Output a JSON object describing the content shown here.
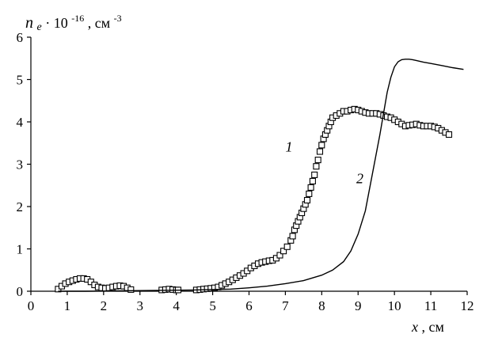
{
  "chart_data": {
    "type": "scatter",
    "ylabel": {
      "var": "n",
      "sub": "e",
      "mid": " · 10",
      "exp": "-16",
      "unit": ", см",
      "unit_exp": "-3"
    },
    "xlabel": {
      "var": "x",
      "unit": ", см"
    },
    "xlim": [
      0,
      12
    ],
    "ylim": [
      0,
      6
    ],
    "x_ticks": [
      "0",
      "1",
      "2",
      "3",
      "4",
      "5",
      "6",
      "7",
      "8",
      "9",
      "10",
      "11",
      "12"
    ],
    "y_ticks": [
      "0",
      "1",
      "2",
      "3",
      "4",
      "5",
      "6"
    ],
    "grid": false,
    "series": [
      {
        "name": "1",
        "style": "markers",
        "marker": "square",
        "x": [
          0.75,
          0.85,
          0.95,
          1.05,
          1.15,
          1.25,
          1.35,
          1.45,
          1.55,
          1.65,
          1.75,
          1.85,
          1.95,
          2.05,
          2.15,
          2.25,
          2.35,
          2.45,
          2.55,
          2.65,
          2.75,
          3.6,
          3.7,
          3.8,
          3.9,
          4.0,
          4.05,
          4.55,
          4.65,
          4.75,
          4.85,
          4.95,
          5.05,
          5.15,
          5.25,
          5.35,
          5.45,
          5.55,
          5.65,
          5.75,
          5.85,
          5.95,
          6.05,
          6.15,
          6.25,
          6.35,
          6.45,
          6.55,
          6.65,
          6.75,
          6.85,
          6.95,
          7.05,
          7.15,
          7.2,
          7.25,
          7.3,
          7.35,
          7.4,
          7.45,
          7.5,
          7.55,
          7.6,
          7.65,
          7.7,
          7.75,
          7.8,
          7.85,
          7.9,
          7.95,
          8.0,
          8.05,
          8.1,
          8.15,
          8.2,
          8.25,
          8.3,
          8.4,
          8.5,
          8.6,
          8.7,
          8.8,
          8.9,
          9.0,
          9.1,
          9.2,
          9.3,
          9.4,
          9.5,
          9.6,
          9.7,
          9.8,
          9.9,
          10.0,
          10.1,
          10.2,
          10.3,
          10.4,
          10.5,
          10.6,
          10.7,
          10.8,
          10.9,
          11.0,
          11.1,
          11.2,
          11.3,
          11.4,
          11.5
        ],
        "y": [
          0.05,
          0.12,
          0.18,
          0.22,
          0.25,
          0.28,
          0.3,
          0.3,
          0.28,
          0.22,
          0.15,
          0.1,
          0.08,
          0.07,
          0.08,
          0.1,
          0.12,
          0.13,
          0.12,
          0.08,
          0.04,
          0.03,
          0.04,
          0.05,
          0.04,
          0.03,
          0.03,
          0.03,
          0.04,
          0.05,
          0.06,
          0.07,
          0.08,
          0.1,
          0.14,
          0.18,
          0.22,
          0.27,
          0.32,
          0.37,
          0.42,
          0.48,
          0.55,
          0.6,
          0.65,
          0.68,
          0.7,
          0.72,
          0.73,
          0.78,
          0.85,
          0.95,
          1.05,
          1.2,
          1.3,
          1.45,
          1.55,
          1.65,
          1.75,
          1.85,
          1.95,
          2.05,
          2.15,
          2.3,
          2.45,
          2.6,
          2.75,
          2.95,
          3.1,
          3.3,
          3.45,
          3.6,
          3.7,
          3.8,
          3.9,
          4.0,
          4.1,
          4.15,
          4.2,
          4.25,
          4.25,
          4.28,
          4.3,
          4.28,
          4.25,
          4.22,
          4.2,
          4.2,
          4.2,
          4.18,
          4.15,
          4.12,
          4.1,
          4.05,
          4.0,
          3.95,
          3.9,
          3.92,
          3.93,
          3.95,
          3.92,
          3.9,
          3.9,
          3.9,
          3.88,
          3.85,
          3.8,
          3.75,
          3.7
        ]
      },
      {
        "name": "2",
        "style": "line",
        "x": [
          0.75,
          1.5,
          2.5,
          3.5,
          4.5,
          5.5,
          6.0,
          6.5,
          7.0,
          7.5,
          8.0,
          8.3,
          8.6,
          8.8,
          9.0,
          9.2,
          9.4,
          9.6,
          9.7,
          9.8,
          9.9,
          10.0,
          10.1,
          10.2,
          10.3,
          10.4,
          10.5,
          10.6,
          10.8,
          11.0,
          11.3,
          11.6,
          11.9
        ],
        "y": [
          0.0,
          0.0,
          0.01,
          0.02,
          0.03,
          0.05,
          0.08,
          0.12,
          0.18,
          0.25,
          0.38,
          0.5,
          0.7,
          0.95,
          1.35,
          1.9,
          2.8,
          3.7,
          4.2,
          4.7,
          5.05,
          5.3,
          5.42,
          5.47,
          5.48,
          5.48,
          5.47,
          5.45,
          5.41,
          5.38,
          5.33,
          5.28,
          5.24
        ]
      }
    ],
    "annotations": [
      {
        "text": "1",
        "x": 7.1,
        "y": 3.3
      },
      {
        "text": "2",
        "x": 9.05,
        "y": 2.55
      }
    ]
  }
}
